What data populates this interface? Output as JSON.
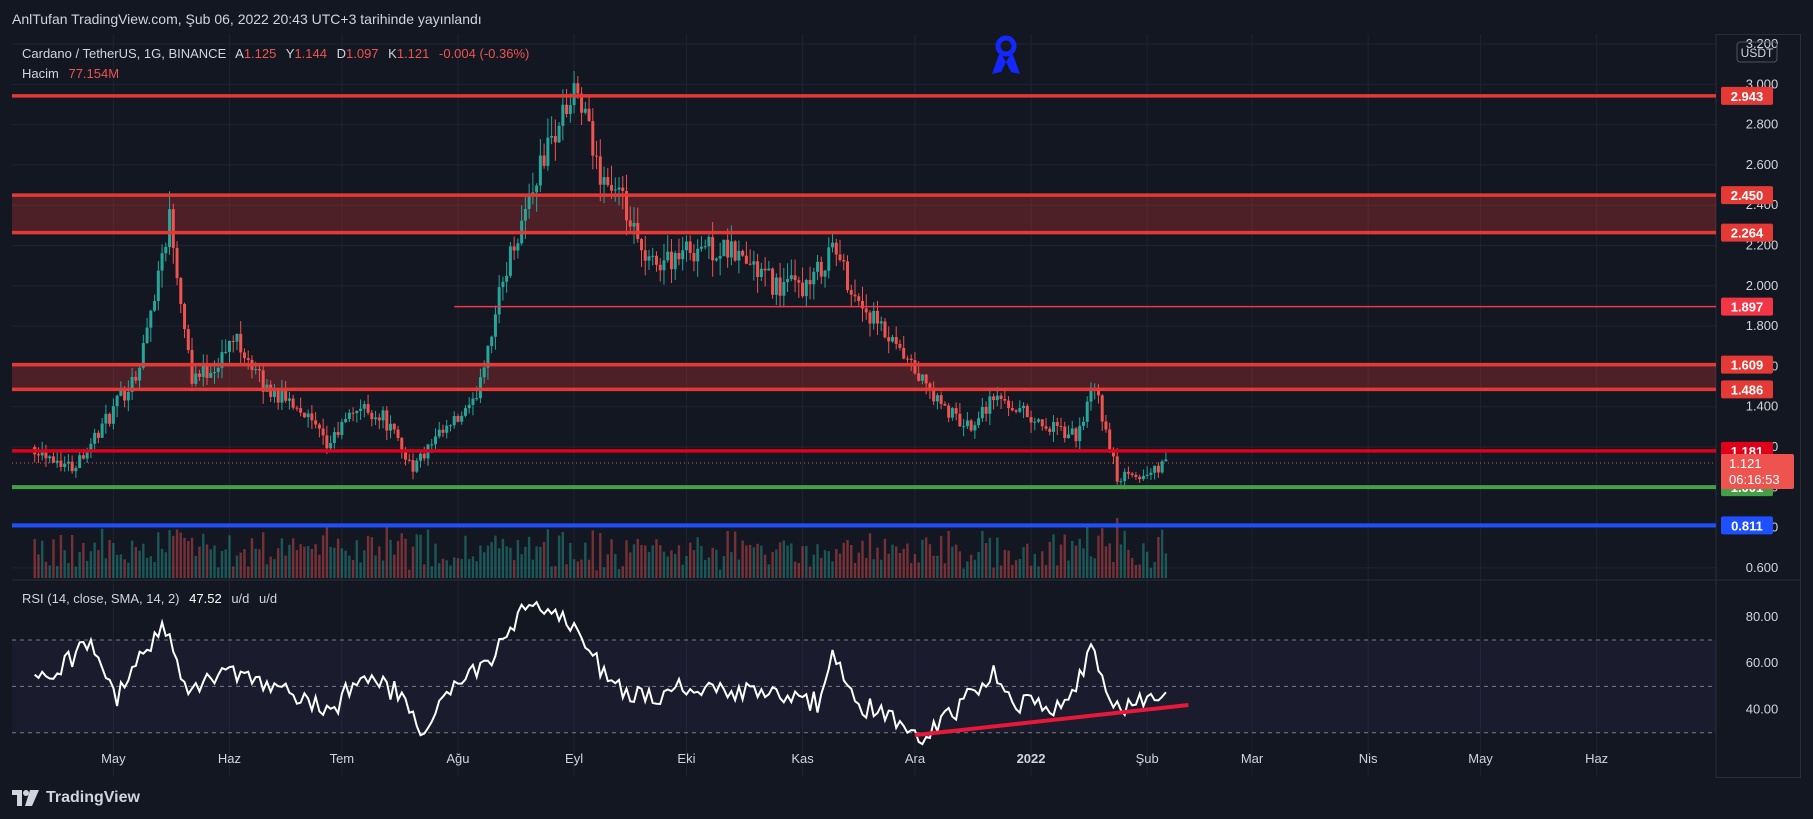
{
  "header": {
    "published": "AnlTufan TradingView.com, Şub 06, 2022 20:43 UTC+3 tarihinde yayınlandı"
  },
  "legend": {
    "symbol": "Cardano / TetherUS, 1G, BINANCE",
    "o_label": "A",
    "o_val": "1.125",
    "h_label": "Y",
    "h_val": "1.144",
    "l_label": "D",
    "l_val": "1.097",
    "c_label": "K",
    "c_val": "1.121",
    "change": "-0.004 (-0.36%)",
    "volume_label": "Hacim",
    "volume_val": "77.154M"
  },
  "currency": "USDT",
  "rsi_legend": {
    "label": "RSI (14, close, SMA, 14, 2)",
    "value": "47.52",
    "extra1": "u/d",
    "extra2": "u/d"
  },
  "footer": {
    "brand": "TradingView"
  },
  "colors": {
    "background": "#131722",
    "up": "#26a69a",
    "down": "#ef5350",
    "resistance": "#e53935",
    "support_green": "#43a047",
    "support_blue": "#1e50ff",
    "rsi_line": "#ffffff",
    "trendline": "#e8183a"
  },
  "chart_data": [
    {
      "type": "candlestick",
      "title": "Cardano / TetherUS, 1G, BINANCE",
      "x_ticks": [
        "May",
        "Haz",
        "Tem",
        "Ağu",
        "Eyl",
        "Eki",
        "Kas",
        "Ara",
        "2022",
        "Şub",
        "Mar",
        "Nis",
        "May",
        "Haz"
      ],
      "y_ticks": [
        "3.200",
        "3.000",
        "2.800",
        "2.600",
        "2.400",
        "2.200",
        "2.000",
        "1.800",
        "1.600",
        "1.400",
        "1.200",
        "1.000",
        "0.800",
        "0.600"
      ],
      "ylim": [
        0.55,
        3.22
      ],
      "last_price": 1.121,
      "countdown": "06:16:53",
      "price_path": [
        [
          "2021-04-10",
          1.2
        ],
        [
          "2021-04-20",
          1.1
        ],
        [
          "2021-04-30",
          1.35
        ],
        [
          "2021-05-08",
          1.6
        ],
        [
          "2021-05-16",
          2.35
        ],
        [
          "2021-05-22",
          1.55
        ],
        [
          "2021-05-28",
          1.6
        ],
        [
          "2021-06-03",
          1.75
        ],
        [
          "2021-06-10",
          1.5
        ],
        [
          "2021-06-20",
          1.4
        ],
        [
          "2021-06-27",
          1.2
        ],
        [
          "2021-07-05",
          1.4
        ],
        [
          "2021-07-12",
          1.35
        ],
        [
          "2021-07-20",
          1.1
        ],
        [
          "2021-07-27",
          1.25
        ],
        [
          "2021-08-05",
          1.4
        ],
        [
          "2021-08-14",
          2.1
        ],
        [
          "2021-08-23",
          2.6
        ],
        [
          "2021-08-29",
          2.85
        ],
        [
          "2021-09-02",
          2.95
        ],
        [
          "2021-09-07",
          2.6
        ],
        [
          "2021-09-14",
          2.4
        ],
        [
          "2021-09-20",
          2.1
        ],
        [
          "2021-09-28",
          2.15
        ],
        [
          "2021-10-05",
          2.2
        ],
        [
          "2021-10-15",
          2.15
        ],
        [
          "2021-10-25",
          2.0
        ],
        [
          "2021-11-03",
          2.0
        ],
        [
          "2021-11-09",
          2.2
        ],
        [
          "2021-11-15",
          1.95
        ],
        [
          "2021-11-25",
          1.7
        ],
        [
          "2021-12-02",
          1.55
        ],
        [
          "2021-12-08",
          1.4
        ],
        [
          "2021-12-15",
          1.3
        ],
        [
          "2021-12-22",
          1.45
        ],
        [
          "2021-12-28",
          1.4
        ],
        [
          "2022-01-05",
          1.3
        ],
        [
          "2022-01-13",
          1.25
        ],
        [
          "2022-01-18",
          1.5
        ],
        [
          "2022-01-24",
          1.05
        ],
        [
          "2022-01-30",
          1.05
        ],
        [
          "2022-02-06",
          1.12
        ]
      ],
      "horizontal_levels": [
        {
          "label": "2.943",
          "value": 2.943,
          "color": "#e53935"
        },
        {
          "label": "2.450",
          "value": 2.45,
          "color": "#e53935"
        },
        {
          "label": "2.264",
          "value": 2.264,
          "color": "#e53935"
        },
        {
          "label": "1.897",
          "value": 1.897,
          "color": "#f23645"
        },
        {
          "label": "1.609",
          "value": 1.609,
          "color": "#e53935"
        },
        {
          "label": "1.486",
          "value": 1.486,
          "color": "#e53935"
        },
        {
          "label": "1.181",
          "value": 1.181,
          "color": "#e0001a"
        },
        {
          "label": "1.001",
          "value": 1.001,
          "color": "#43a047"
        },
        {
          "label": "0.811",
          "value": 0.811,
          "color": "#1e50ff"
        }
      ],
      "zones": [
        {
          "from": 2.264,
          "to": 2.45,
          "color": "#e53935"
        },
        {
          "from": 1.486,
          "to": 1.609,
          "color": "#e53935"
        }
      ]
    },
    {
      "type": "line",
      "title": "RSI (14, close, SMA, 14, 2)",
      "y_ticks": [
        "80.00",
        "60.00",
        "40.00"
      ],
      "ylim": [
        20,
        95
      ],
      "bands": [
        70,
        50,
        30
      ],
      "last_value": 47.52,
      "rsi_path": [
        [
          "2021-04-10",
          52
        ],
        [
          "2021-04-25",
          68
        ],
        [
          "2021-05-02",
          45
        ],
        [
          "2021-05-12",
          72
        ],
        [
          "2021-05-16",
          75
        ],
        [
          "2021-05-20",
          50
        ],
        [
          "2021-06-01",
          55
        ],
        [
          "2021-06-20",
          45
        ],
        [
          "2021-06-28",
          38
        ],
        [
          "2021-07-05",
          55
        ],
        [
          "2021-07-15",
          48
        ],
        [
          "2021-07-22",
          30
        ],
        [
          "2021-07-30",
          48
        ],
        [
          "2021-08-10",
          62
        ],
        [
          "2021-08-20",
          86
        ],
        [
          "2021-08-27",
          80
        ],
        [
          "2021-09-02",
          75
        ],
        [
          "2021-09-10",
          52
        ],
        [
          "2021-09-20",
          45
        ],
        [
          "2021-10-01",
          50
        ],
        [
          "2021-10-20",
          47
        ],
        [
          "2021-11-05",
          43
        ],
        [
          "2021-11-09",
          63
        ],
        [
          "2021-11-15",
          43
        ],
        [
          "2021-11-28",
          34
        ],
        [
          "2021-12-04",
          28
        ],
        [
          "2021-12-12",
          40
        ],
        [
          "2021-12-22",
          57
        ],
        [
          "2021-12-28",
          43
        ],
        [
          "2022-01-10",
          40
        ],
        [
          "2022-01-17",
          66
        ],
        [
          "2022-01-22",
          42
        ],
        [
          "2022-01-28",
          42
        ],
        [
          "2022-02-02",
          45
        ],
        [
          "2022-02-06",
          47.52
        ]
      ],
      "trendline": [
        [
          "2021-12-01",
          29
        ],
        [
          "2022-02-12",
          42
        ]
      ]
    }
  ]
}
